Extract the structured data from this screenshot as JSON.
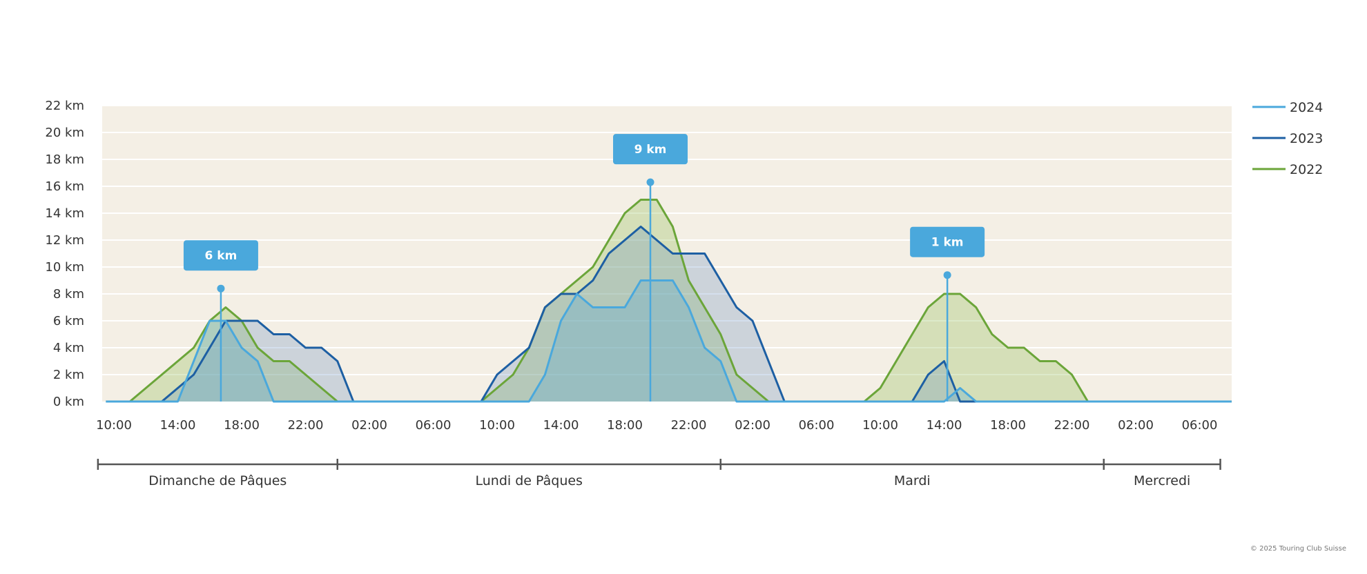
{
  "chart_data": {
    "type": "area",
    "x_unit": "hours since Dimanche de Pâques 10:00",
    "y_unit": "km",
    "ylim": [
      0,
      22
    ],
    "y_ticks": [
      "0 km",
      "2 km",
      "4 km",
      "6 km",
      "8 km",
      "10 km",
      "12 km",
      "14 km",
      "16 km",
      "18 km",
      "20 km",
      "22 km"
    ],
    "x_ticks": [
      {
        "h": 0,
        "label": "10:00"
      },
      {
        "h": 4,
        "label": "14:00"
      },
      {
        "h": 8,
        "label": "18:00"
      },
      {
        "h": 12,
        "label": "22:00"
      },
      {
        "h": 16,
        "label": "02:00"
      },
      {
        "h": 20,
        "label": "06:00"
      },
      {
        "h": 24,
        "label": "10:00"
      },
      {
        "h": 28,
        "label": "14:00"
      },
      {
        "h": 32,
        "label": "18:00"
      },
      {
        "h": 36,
        "label": "22:00"
      },
      {
        "h": 40,
        "label": "02:00"
      },
      {
        "h": 44,
        "label": "06:00"
      },
      {
        "h": 48,
        "label": "10:00"
      },
      {
        "h": 52,
        "label": "14:00"
      },
      {
        "h": 56,
        "label": "18:00"
      },
      {
        "h": 60,
        "label": "22:00"
      },
      {
        "h": 64,
        "label": "02:00"
      },
      {
        "h": 68,
        "label": "06:00"
      }
    ],
    "x_max": 70,
    "day_segments": [
      {
        "label": "Dimanche de Pâques",
        "start": -1,
        "end": 14
      },
      {
        "label": "Lundi de Pâques",
        "start": 14,
        "end": 38
      },
      {
        "label": "Mardi",
        "start": 38,
        "end": 62
      },
      {
        "label": "Mercredi",
        "start": 62,
        "end": 69.3
      }
    ],
    "series": [
      {
        "name": "2022",
        "color": "#6ba539",
        "fill": "rgba(150,190,90,0.32)",
        "points": [
          [
            -0.5,
            0
          ],
          [
            0,
            0
          ],
          [
            1,
            0
          ],
          [
            2,
            1
          ],
          [
            3,
            2
          ],
          [
            4,
            3
          ],
          [
            5,
            4
          ],
          [
            6,
            6
          ],
          [
            7,
            7
          ],
          [
            8,
            6
          ],
          [
            9,
            4
          ],
          [
            10,
            3
          ],
          [
            11,
            3
          ],
          [
            12,
            2
          ],
          [
            13,
            1
          ],
          [
            14,
            0
          ],
          [
            15,
            0
          ],
          [
            16,
            0
          ],
          [
            17,
            0
          ],
          [
            18,
            0
          ],
          [
            19,
            0
          ],
          [
            20,
            0
          ],
          [
            21,
            0
          ],
          [
            22,
            0
          ],
          [
            23,
            0
          ],
          [
            24,
            1
          ],
          [
            25,
            2
          ],
          [
            26,
            4
          ],
          [
            27,
            7
          ],
          [
            28,
            8
          ],
          [
            29,
            9
          ],
          [
            30,
            10
          ],
          [
            31,
            12
          ],
          [
            32,
            14
          ],
          [
            33,
            15
          ],
          [
            34,
            15
          ],
          [
            35,
            13
          ],
          [
            36,
            9
          ],
          [
            37,
            7
          ],
          [
            38,
            5
          ],
          [
            39,
            2
          ],
          [
            40,
            1
          ],
          [
            41,
            0
          ],
          [
            42,
            0
          ],
          [
            43,
            0
          ],
          [
            44,
            0
          ],
          [
            45,
            0
          ],
          [
            46,
            0
          ],
          [
            47,
            0
          ],
          [
            48,
            1
          ],
          [
            49,
            3
          ],
          [
            50,
            5
          ],
          [
            51,
            7
          ],
          [
            52,
            8
          ],
          [
            53,
            8
          ],
          [
            54,
            7
          ],
          [
            55,
            5
          ],
          [
            56,
            4
          ],
          [
            57,
            4
          ],
          [
            58,
            3
          ],
          [
            59,
            3
          ],
          [
            60,
            2
          ],
          [
            61,
            0
          ],
          [
            62,
            0
          ],
          [
            64,
            0
          ],
          [
            66,
            0
          ],
          [
            68,
            0
          ],
          [
            70,
            0
          ]
        ]
      },
      {
        "name": "2023",
        "color": "#1d5fa3",
        "fill": "rgba(100,140,190,0.28)",
        "points": [
          [
            -0.5,
            0
          ],
          [
            1,
            0
          ],
          [
            2,
            0
          ],
          [
            3,
            0
          ],
          [
            4,
            1
          ],
          [
            5,
            2
          ],
          [
            6,
            4
          ],
          [
            7,
            6
          ],
          [
            8,
            6
          ],
          [
            9,
            6
          ],
          [
            10,
            5
          ],
          [
            11,
            5
          ],
          [
            12,
            4
          ],
          [
            13,
            4
          ],
          [
            14,
            3
          ],
          [
            15,
            0
          ],
          [
            16,
            0
          ],
          [
            17,
            0
          ],
          [
            18,
            0
          ],
          [
            19,
            0
          ],
          [
            20,
            0
          ],
          [
            21,
            0
          ],
          [
            22,
            0
          ],
          [
            23,
            0
          ],
          [
            24,
            2
          ],
          [
            25,
            3
          ],
          [
            26,
            4
          ],
          [
            27,
            7
          ],
          [
            28,
            8
          ],
          [
            29,
            8
          ],
          [
            30,
            9
          ],
          [
            31,
            11
          ],
          [
            32,
            12
          ],
          [
            33,
            13
          ],
          [
            34,
            12
          ],
          [
            35,
            11
          ],
          [
            36,
            11
          ],
          [
            37,
            11
          ],
          [
            38,
            9
          ],
          [
            39,
            7
          ],
          [
            40,
            6
          ],
          [
            41,
            3
          ],
          [
            42,
            0
          ],
          [
            43,
            0
          ],
          [
            44,
            0
          ],
          [
            45,
            0
          ],
          [
            46,
            0
          ],
          [
            47,
            0
          ],
          [
            48,
            0
          ],
          [
            49,
            0
          ],
          [
            50,
            0
          ],
          [
            51,
            2
          ],
          [
            52,
            3
          ],
          [
            53,
            0
          ],
          [
            54,
            0
          ],
          [
            55,
            0
          ],
          [
            56,
            0
          ],
          [
            58,
            0
          ],
          [
            60,
            0
          ],
          [
            62,
            0
          ],
          [
            64,
            0
          ],
          [
            66,
            0
          ],
          [
            68,
            0
          ],
          [
            70,
            0
          ]
        ]
      },
      {
        "name": "2024",
        "color": "#4aa8dc",
        "fill": "rgba(90,170,210,0.30)",
        "points": [
          [
            -0.5,
            0
          ],
          [
            1,
            0
          ],
          [
            2,
            0
          ],
          [
            3,
            0
          ],
          [
            4,
            0
          ],
          [
            5,
            3
          ],
          [
            6,
            6
          ],
          [
            7,
            6
          ],
          [
            8,
            4
          ],
          [
            9,
            3
          ],
          [
            10,
            0
          ],
          [
            11,
            0
          ],
          [
            12,
            0
          ],
          [
            13,
            0
          ],
          [
            14,
            0
          ],
          [
            15,
            0
          ],
          [
            16,
            0
          ],
          [
            18,
            0
          ],
          [
            20,
            0
          ],
          [
            22,
            0
          ],
          [
            24,
            0
          ],
          [
            25,
            0
          ],
          [
            26,
            0
          ],
          [
            27,
            2
          ],
          [
            28,
            6
          ],
          [
            29,
            8
          ],
          [
            30,
            7
          ],
          [
            31,
            7
          ],
          [
            32,
            7
          ],
          [
            33,
            9
          ],
          [
            34,
            9
          ],
          [
            35,
            9
          ],
          [
            36,
            7
          ],
          [
            37,
            4
          ],
          [
            38,
            3
          ],
          [
            39,
            0
          ],
          [
            40,
            0
          ],
          [
            42,
            0
          ],
          [
            44,
            0
          ],
          [
            46,
            0
          ],
          [
            48,
            0
          ],
          [
            50,
            0
          ],
          [
            51,
            0
          ],
          [
            52,
            0
          ],
          [
            53,
            1
          ],
          [
            54,
            0
          ],
          [
            56,
            0
          ],
          [
            58,
            0
          ],
          [
            60,
            0
          ],
          [
            62,
            0
          ],
          [
            64,
            0
          ],
          [
            66,
            0
          ],
          [
            68,
            0
          ],
          [
            70,
            0
          ]
        ]
      }
    ],
    "annotations": [
      {
        "label": "6 km",
        "h": 6.7,
        "value": 8.4
      },
      {
        "label": "9 km",
        "h": 33.6,
        "value": 16.3
      },
      {
        "label": "1 km",
        "h": 52.2,
        "value": 9.4
      }
    ],
    "legend_position": "top-right",
    "grid": true
  },
  "footer": {
    "copyright": "© 2025 Touring Club Suisse"
  }
}
